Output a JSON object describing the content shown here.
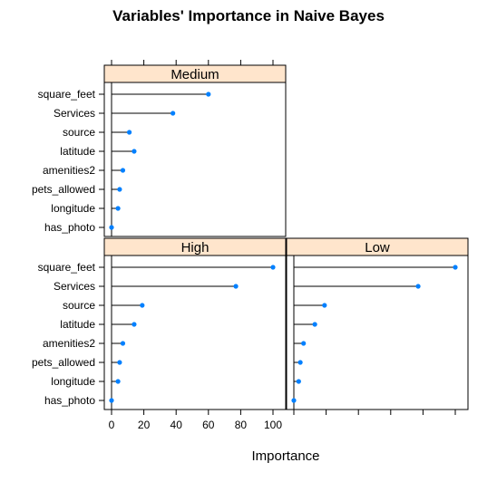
{
  "chart_data": {
    "type": "dotplot",
    "title": "Variables' Importance in Naive Bayes",
    "xlabel": "Importance",
    "xlim": [
      0,
      100
    ],
    "xticks": [
      0,
      20,
      40,
      60,
      80,
      100
    ],
    "categories": [
      "square_feet",
      "Services",
      "source",
      "latitude",
      "amenities2",
      "pets_allowed",
      "longitude",
      "has_photo"
    ],
    "panels": [
      {
        "name": "Medium",
        "values": [
          60,
          38,
          11,
          14,
          7,
          5,
          4,
          0
        ]
      },
      {
        "name": "High",
        "values": [
          100,
          77,
          19,
          14,
          7,
          5,
          4,
          0
        ]
      },
      {
        "name": "Low",
        "values": [
          100,
          77,
          19,
          13,
          6,
          4,
          3,
          0
        ]
      }
    ],
    "colors": {
      "point": "#0080ff",
      "strip": "#ffe5cc",
      "line": "#000000"
    }
  }
}
